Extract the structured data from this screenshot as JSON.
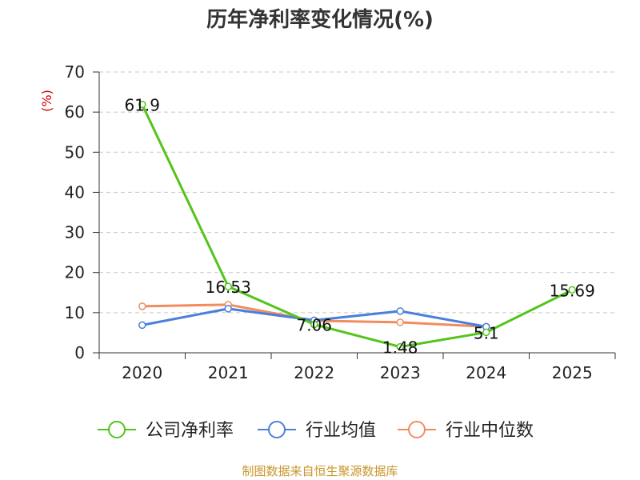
{
  "chart_data": {
    "type": "line",
    "title": "历年净利率变化情况(%)",
    "xlabel": "",
    "ylabel": "(%)",
    "categories": [
      "2020",
      "2021",
      "2022",
      "2023",
      "2024",
      "2025"
    ],
    "ylim": [
      0,
      70
    ],
    "yticks": [
      0,
      10,
      20,
      30,
      40,
      50,
      60,
      70
    ],
    "grid": true,
    "legend_position": "bottom",
    "series": [
      {
        "name": "公司净利率",
        "color": "#52c41a",
        "values": [
          61.9,
          16.53,
          7.06,
          1.48,
          5.1,
          15.69
        ],
        "labels": [
          "61.9",
          "16.53",
          "7.06",
          "1.48",
          "5.1",
          "15.69"
        ]
      },
      {
        "name": "行业均值",
        "color": "#4a7fd9",
        "values": [
          6.9,
          11.0,
          8.1,
          10.4,
          6.5,
          null
        ]
      },
      {
        "name": "行业中位数",
        "color": "#f28c5e",
        "values": [
          11.6,
          12.0,
          8.0,
          7.6,
          6.5,
          null
        ]
      }
    ]
  },
  "source": {
    "text": "制图数据来自恒生聚源数据库",
    "color": "#c8962a"
  }
}
